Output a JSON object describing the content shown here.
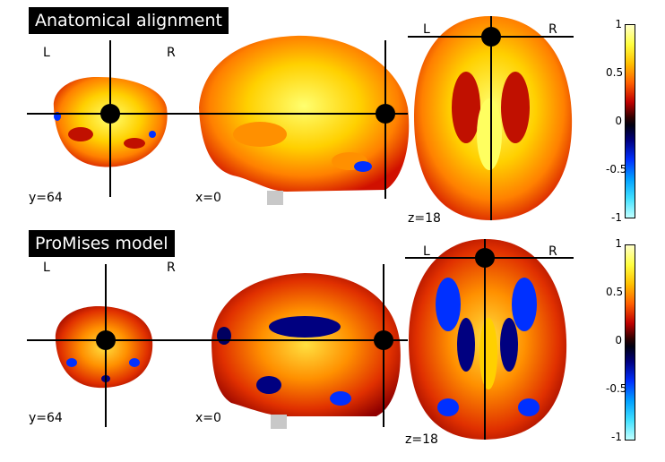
{
  "panels": [
    {
      "title": "Anatomical alignment",
      "left_label": "L",
      "right_label": "R",
      "coronal_coord": "y=64",
      "sagittal_coord": "x=0",
      "axial_coord": "z=18",
      "axial_left": "L",
      "axial_right": "R",
      "colorbar_ticks": [
        "1",
        "0.5",
        "0",
        "-0.5",
        "-1"
      ]
    },
    {
      "title": "ProMises model",
      "left_label": "L",
      "right_label": "R",
      "coronal_coord": "y=64",
      "sagittal_coord": "x=0",
      "axial_coord": "z=18",
      "axial_left": "L",
      "axial_right": "R",
      "colorbar_ticks": [
        "1",
        "0.5",
        "0",
        "-0.5",
        "-1"
      ]
    }
  ],
  "colormap": {
    "positive_colors": [
      "#ffff60",
      "#ffc000",
      "#ff6000",
      "#c00000"
    ],
    "negative_colors": [
      "#000080",
      "#0030ff",
      "#40e0ff"
    ],
    "crosshair_color": "#000000"
  }
}
